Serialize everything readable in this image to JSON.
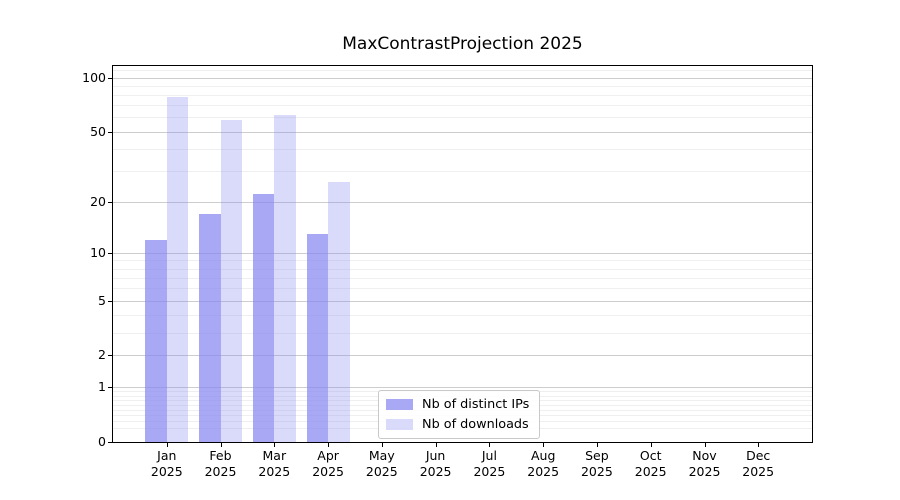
{
  "chart_data": {
    "type": "bar",
    "title": "MaxContrastProjection 2025",
    "categories": [
      "Jan",
      "Feb",
      "Mar",
      "Apr",
      "May",
      "Jun",
      "Jul",
      "Aug",
      "Sep",
      "Oct",
      "Nov",
      "Dec"
    ],
    "x_tick_year": "2025",
    "series": [
      {
        "name": "Nb of distinct IPs",
        "key": "distinct-ips",
        "color": "rgba(134,134,240,0.72)",
        "color_hex": "#a6a6f2",
        "values": [
          12,
          17,
          22,
          13,
          null,
          null,
          null,
          null,
          null,
          null,
          null,
          null
        ]
      },
      {
        "name": "Nb of downloads",
        "key": "downloads",
        "color": "rgba(134,134,240,0.30)",
        "color_hex": "#dcdcf8",
        "values": [
          78,
          58,
          62,
          26,
          null,
          null,
          null,
          null,
          null,
          null,
          null,
          null
        ]
      }
    ],
    "xlabel": "",
    "ylabel": "",
    "y_axis": {
      "scale": "log10(1+y)",
      "ticks": [
        0,
        1,
        2,
        5,
        10,
        20,
        50,
        100
      ],
      "minor_ticks": [
        0.2,
        0.3,
        0.4,
        0.5,
        0.6,
        0.7,
        0.8,
        0.9,
        3,
        4,
        6,
        7,
        8,
        9,
        30,
        40,
        60,
        70,
        80,
        90,
        110
      ],
      "max": 116
    },
    "x_axis": {
      "range_units": 13,
      "first_tick_unit": 1
    },
    "grid": true,
    "legend_position": "inside-bottom-center-left"
  },
  "colors": {
    "major_grid": "#cdcdcd",
    "minor_grid": "#efefef",
    "spine": "#000000",
    "text": "#000000"
  }
}
